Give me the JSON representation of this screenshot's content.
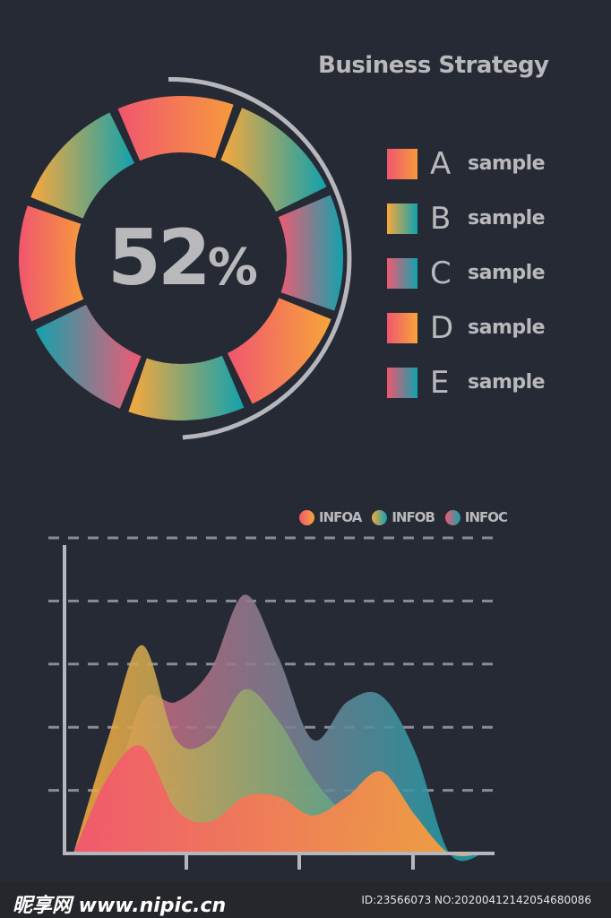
{
  "header": {
    "title": "Business Strategy"
  },
  "donut": {
    "center_value": "52",
    "center_unit": "%",
    "segment_count": 8,
    "arc_fraction": 0.52
  },
  "legend": [
    {
      "letter": "A",
      "label": "sample",
      "gradient": [
        "#f0566f",
        "#f79a3c"
      ]
    },
    {
      "letter": "B",
      "label": "sample",
      "gradient": [
        "#f8a83c",
        "#12a2ad"
      ]
    },
    {
      "letter": "C",
      "label": "sample",
      "gradient": [
        "#ef5a73",
        "#14a2ad"
      ]
    },
    {
      "letter": "D",
      "label": "sample",
      "gradient": [
        "#f0566f",
        "#f7a53a"
      ]
    },
    {
      "letter": "E",
      "label": "sample",
      "gradient": [
        "#f0566f",
        "#14a2ad"
      ]
    }
  ],
  "chart_data": {
    "type": "area",
    "legend_position": "top-right",
    "grid": true,
    "ylim": [
      0,
      5
    ],
    "x": [
      0,
      1,
      2,
      3,
      4,
      5,
      6,
      7,
      8,
      9,
      10,
      11,
      12
    ],
    "series": [
      {
        "name": "INFOA",
        "colors": [
          "#f0566f",
          "#f7a53a"
        ],
        "values": [
          0,
          1.2,
          1.7,
          0.7,
          0.5,
          0.9,
          0.9,
          0.6,
          0.9,
          1.3,
          0.6,
          0,
          0
        ]
      },
      {
        "name": "INFOB",
        "colors": [
          "#f8a83c",
          "#12a2ad"
        ],
        "values": [
          0,
          1.8,
          3.3,
          1.8,
          1.8,
          2.6,
          2.1,
          1.2,
          0.6,
          0.4,
          0.2,
          0,
          0
        ]
      },
      {
        "name": "INFOC",
        "colors": [
          "#ef5a73",
          "#14a2ad"
        ],
        "values": [
          0,
          0.6,
          2.4,
          2.4,
          2.9,
          4.1,
          3.1,
          1.8,
          2.4,
          2.5,
          1.6,
          0,
          0
        ]
      }
    ],
    "x_ticks": 3
  },
  "watermark": {
    "left": "昵享网 www.nipic.cn",
    "right": "ID:23566073 NO:20200412142054680086"
  }
}
